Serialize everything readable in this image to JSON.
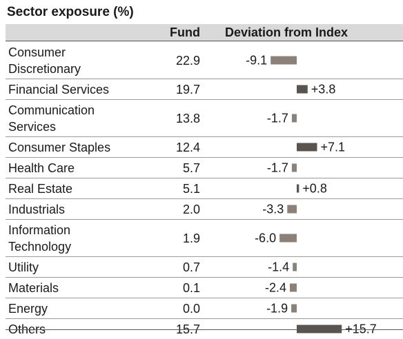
{
  "title": "Sector exposure (%)",
  "columns": {
    "fund": "Fund",
    "deviation": "Deviation from Index"
  },
  "colors": {
    "negative_bar": "#8b8178",
    "positive_bar": "#5a5450",
    "header_band": "#d9d9d9"
  },
  "chart_data": {
    "type": "table",
    "title": "Sector exposure (%)",
    "columns": [
      "Fund",
      "Deviation from Index"
    ],
    "categories": [
      "Consumer Discretionary",
      "Financial Services",
      "Communication Services",
      "Consumer Staples",
      "Health Care",
      "Real Estate",
      "Industrials",
      "Information Technology",
      "Utility",
      "Materials",
      "Energy",
      "Others"
    ],
    "rows": [
      {
        "sector": [
          "Consumer",
          "Discretionary"
        ],
        "fund": "22.9",
        "deviation": -9.1,
        "deviation_label": "-9.1"
      },
      {
        "sector": [
          "Financial Services"
        ],
        "fund": "19.7",
        "deviation": 3.8,
        "deviation_label": "+3.8"
      },
      {
        "sector": [
          "Communication",
          "Services"
        ],
        "fund": "13.8",
        "deviation": -1.7,
        "deviation_label": "-1.7"
      },
      {
        "sector": [
          "Consumer Staples"
        ],
        "fund": "12.4",
        "deviation": 7.1,
        "deviation_label": "+7.1"
      },
      {
        "sector": [
          "Health Care"
        ],
        "fund": "5.7",
        "deviation": -1.7,
        "deviation_label": "-1.7"
      },
      {
        "sector": [
          "Real Estate"
        ],
        "fund": "5.1",
        "deviation": 0.8,
        "deviation_label": "+0.8"
      },
      {
        "sector": [
          "Industrials"
        ],
        "fund": "2.0",
        "deviation": -3.3,
        "deviation_label": "-3.3"
      },
      {
        "sector": [
          "Information",
          "Technology"
        ],
        "fund": "1.9",
        "deviation": -6.0,
        "deviation_label": "-6.0"
      },
      {
        "sector": [
          "Utility"
        ],
        "fund": "0.7",
        "deviation": -1.4,
        "deviation_label": "-1.4"
      },
      {
        "sector": [
          "Materials"
        ],
        "fund": "0.1",
        "deviation": -2.4,
        "deviation_label": "-2.4"
      },
      {
        "sector": [
          "Energy"
        ],
        "fund": "0.0",
        "deviation": -1.9,
        "deviation_label": "-1.9"
      },
      {
        "sector": [
          "Others"
        ],
        "fund": "15.7",
        "deviation": 15.7,
        "deviation_label": "+15.7"
      }
    ]
  }
}
